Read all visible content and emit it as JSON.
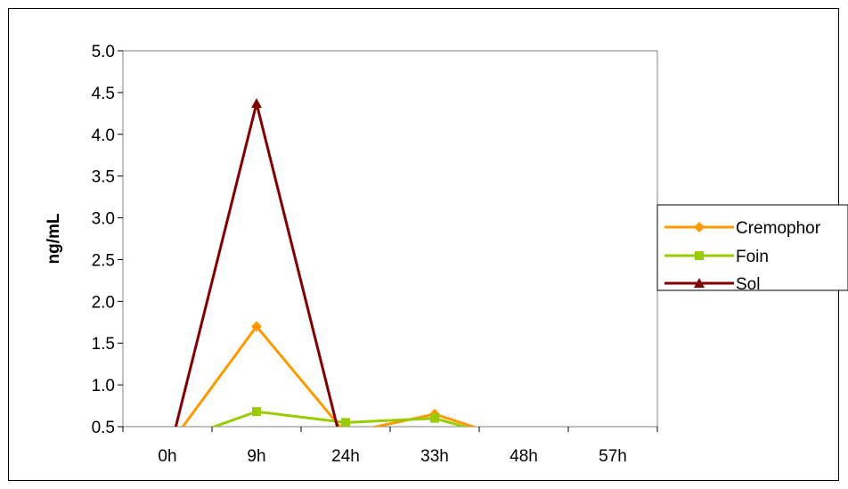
{
  "chart_data": {
    "type": "line",
    "title": "",
    "xlabel": "",
    "ylabel": "ng/mL",
    "categories": [
      "0h",
      "9h",
      "24h",
      "33h",
      "48h",
      "57h"
    ],
    "ylim": [
      0.5,
      5.0
    ],
    "yticks": [
      "0.5",
      "1.0",
      "1.5",
      "2.0",
      "2.5",
      "3.0",
      "3.5",
      "4.0",
      "4.5",
      "5.0"
    ],
    "grid": false,
    "legend_position": "right",
    "series": [
      {
        "name": "Cremophor",
        "color": "#FF9900",
        "marker": "diamond",
        "values": [
          0.25,
          1.7,
          0.42,
          0.65,
          0.3,
          null
        ]
      },
      {
        "name": "Foin",
        "color": "#99CC00",
        "marker": "square",
        "values": [
          0.3,
          0.68,
          0.55,
          0.6,
          0.3,
          null
        ]
      },
      {
        "name": "Sol",
        "color": "#800000",
        "marker": "triangle",
        "values": [
          0.1,
          4.37,
          0.1,
          null,
          null,
          null
        ]
      }
    ]
  }
}
